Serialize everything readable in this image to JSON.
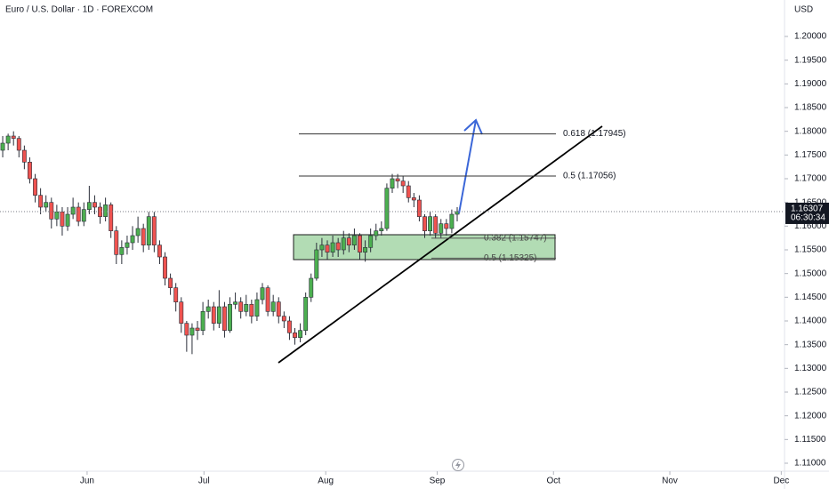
{
  "chart_data": {
    "type": "candlestick",
    "title": "Euro / U.S. Dollar · 1D · FOREXCOM",
    "currency": "USD",
    "up_color": "#4caf50",
    "down_color": "#ef5350",
    "open": [
      1.176,
      1.1775,
      1.179,
      1.1785,
      1.176,
      1.1735,
      1.17,
      1.1665,
      1.164,
      1.165,
      1.1615,
      1.163,
      1.16,
      1.1625,
      1.164,
      1.161,
      1.1635,
      1.165,
      1.164,
      1.162,
      1.1645,
      1.159,
      1.154,
      1.1555,
      1.1565,
      1.158,
      1.1595,
      1.156,
      1.162,
      1.156,
      1.1535,
      1.149,
      1.147,
      1.144,
      1.1395,
      1.137,
      1.1385,
      1.138,
      1.142,
      1.143,
      1.1395,
      1.143,
      1.138,
      1.1435,
      1.144,
      1.142,
      1.1435,
      1.141,
      1.1445,
      1.147,
      1.142,
      1.144,
      1.141,
      1.14,
      1.1375,
      1.1365,
      1.138,
      1.145,
      1.149,
      1.155,
      1.156,
      1.1545,
      1.1565,
      1.155,
      1.1575,
      1.156,
      1.158,
      1.1545,
      1.1555,
      1.158,
      1.159,
      1.1595,
      1.168,
      1.17,
      1.1695,
      1.1685,
      1.166,
      1.1655,
      1.162,
      1.159,
      1.162,
      1.1585,
      1.1605,
      1.1595,
      1.1625
    ],
    "high": [
      1.179,
      1.1795,
      1.18,
      1.179,
      1.177,
      1.1745,
      1.171,
      1.168,
      1.1665,
      1.166,
      1.1645,
      1.164,
      1.164,
      1.166,
      1.165,
      1.165,
      1.1685,
      1.1665,
      1.165,
      1.166,
      1.165,
      1.16,
      1.157,
      1.158,
      1.16,
      1.162,
      1.1605,
      1.163,
      1.163,
      1.157,
      1.1545,
      1.15,
      1.148,
      1.145,
      1.14,
      1.1395,
      1.14,
      1.144,
      1.1445,
      1.144,
      1.1465,
      1.144,
      1.145,
      1.146,
      1.145,
      1.1455,
      1.1445,
      1.146,
      1.148,
      1.1475,
      1.1455,
      1.145,
      1.142,
      1.141,
      1.1385,
      1.1395,
      1.146,
      1.15,
      1.1565,
      1.1575,
      1.157,
      1.158,
      1.1575,
      1.159,
      1.1585,
      1.1595,
      1.1585,
      1.157,
      1.1595,
      1.1605,
      1.161,
      1.169,
      1.171,
      1.171,
      1.1705,
      1.1695,
      1.167,
      1.1665,
      1.1625,
      1.163,
      1.1625,
      1.1615,
      1.1615,
      1.1635,
      1.164
    ],
    "low": [
      1.1745,
      1.176,
      1.177,
      1.1745,
      1.172,
      1.169,
      1.165,
      1.1625,
      1.163,
      1.1595,
      1.16,
      1.158,
      1.159,
      1.1615,
      1.16,
      1.16,
      1.1625,
      1.1625,
      1.1605,
      1.161,
      1.1575,
      1.152,
      1.152,
      1.154,
      1.155,
      1.1565,
      1.1545,
      1.155,
      1.1545,
      1.152,
      1.1475,
      1.1455,
      1.142,
      1.1375,
      1.1335,
      1.133,
      1.136,
      1.137,
      1.1405,
      1.138,
      1.1385,
      1.1365,
      1.1375,
      1.1425,
      1.1405,
      1.141,
      1.1395,
      1.14,
      1.1435,
      1.141,
      1.141,
      1.1395,
      1.1385,
      1.136,
      1.135,
      1.1355,
      1.137,
      1.144,
      1.1485,
      1.1535,
      1.153,
      1.1535,
      1.1535,
      1.154,
      1.1545,
      1.155,
      1.153,
      1.1525,
      1.1545,
      1.157,
      1.158,
      1.159,
      1.167,
      1.168,
      1.167,
      1.165,
      1.164,
      1.161,
      1.1575,
      1.158,
      1.1575,
      1.1575,
      1.158,
      1.1585,
      1.161
    ],
    "close": [
      1.1775,
      1.179,
      1.1785,
      1.176,
      1.1735,
      1.17,
      1.1665,
      1.164,
      1.165,
      1.1615,
      1.163,
      1.16,
      1.1625,
      1.164,
      1.161,
      1.1635,
      1.165,
      1.164,
      1.162,
      1.1645,
      1.159,
      1.154,
      1.1555,
      1.1565,
      1.158,
      1.1595,
      1.156,
      1.162,
      1.156,
      1.1535,
      1.149,
      1.147,
      1.144,
      1.1395,
      1.137,
      1.1385,
      1.138,
      1.142,
      1.143,
      1.1395,
      1.143,
      1.138,
      1.1435,
      1.144,
      1.142,
      1.1435,
      1.141,
      1.1445,
      1.147,
      1.142,
      1.144,
      1.141,
      1.14,
      1.1375,
      1.1365,
      1.138,
      1.145,
      1.149,
      1.155,
      1.156,
      1.1545,
      1.1565,
      1.155,
      1.1575,
      1.156,
      1.158,
      1.1545,
      1.1555,
      1.158,
      1.159,
      1.1595,
      1.168,
      1.17,
      1.1695,
      1.1685,
      1.166,
      1.1655,
      1.162,
      1.159,
      1.162,
      1.1585,
      1.1605,
      1.1595,
      1.1625,
      1.16307
    ],
    "xlim": [
      -0.5,
      144.5
    ],
    "xticks": [
      {
        "value": 15.6,
        "label": "Jun"
      },
      {
        "value": 37.2,
        "label": "Jul"
      },
      {
        "value": 59.7,
        "label": "Aug"
      },
      {
        "value": 80.3,
        "label": "Sep"
      },
      {
        "value": 101.8,
        "label": "Oct"
      },
      {
        "value": 123.3,
        "label": "Nov"
      },
      {
        "value": 143.9,
        "label": "Dec"
      }
    ],
    "ylim": [
      1.10831,
      1.20769
    ],
    "yticks": [
      {
        "value": 1.11,
        "label": "1.11000"
      },
      {
        "value": 1.115,
        "label": "1.11500"
      },
      {
        "value": 1.12,
        "label": "1.12000"
      },
      {
        "value": 1.125,
        "label": "1.12500"
      },
      {
        "value": 1.13,
        "label": "1.13000"
      },
      {
        "value": 1.135,
        "label": "1.13500"
      },
      {
        "value": 1.14,
        "label": "1.14000"
      },
      {
        "value": 1.145,
        "label": "1.14500"
      },
      {
        "value": 1.15,
        "label": "1.15000"
      },
      {
        "value": 1.155,
        "label": "1.15500"
      },
      {
        "value": 1.16,
        "label": "1.16000"
      },
      {
        "value": 1.165,
        "label": "1.16500"
      },
      {
        "value": 1.17,
        "label": "1.17000"
      },
      {
        "value": 1.175,
        "label": "1.17500"
      },
      {
        "value": 1.18,
        "label": "1.18000"
      },
      {
        "value": 1.185,
        "label": "1.18500"
      },
      {
        "value": 1.19,
        "label": "1.19000"
      },
      {
        "value": 1.195,
        "label": "1.19500"
      },
      {
        "value": 1.2,
        "label": "1.20000"
      }
    ],
    "last_price": 1.16307,
    "countdown": "06:30:34",
    "fib_upper": [
      {
        "value": 1.17945,
        "label": "0.618 (1.17945)"
      },
      {
        "value": 1.17056,
        "label": "0.5 (1.17056)"
      }
    ],
    "fib_zone": [
      {
        "value": 1.15747,
        "label": "0.382 (1.15747)"
      },
      {
        "value": 1.15325,
        "label": "0.5 (1.15325)"
      }
    ]
  }
}
